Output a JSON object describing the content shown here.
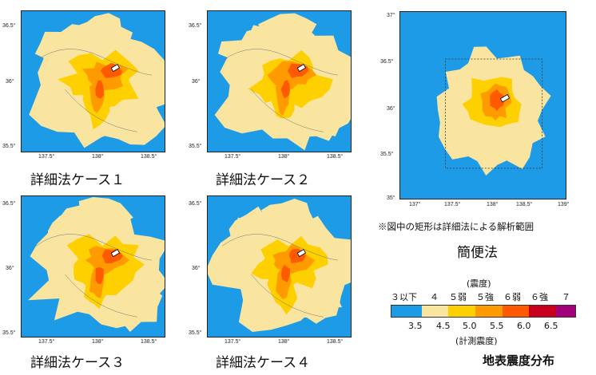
{
  "maps": [
    {
      "label": "詳細法ケース１",
      "yticks": [
        "36.5°",
        "36°",
        "35.5°"
      ],
      "xticks": [
        "137.5°",
        "138°",
        "138.5°"
      ]
    },
    {
      "label": "詳細法ケース２",
      "yticks": [
        "36.5°",
        "36°",
        "35.5°"
      ],
      "xticks": [
        "137.5°",
        "138°",
        "138.5°"
      ]
    },
    {
      "label": "詳細法ケース３",
      "yticks": [
        "36.5°",
        "36°",
        "35.5°"
      ],
      "xticks": [
        "137.5°",
        "138°",
        "138.5°"
      ]
    },
    {
      "label": "詳細法ケース４",
      "yticks": [
        "36.5°",
        "36°",
        "35.5°"
      ],
      "xticks": [
        "137.5°",
        "138°",
        "138.5°"
      ]
    }
  ],
  "simple_map": {
    "label": "簡便法",
    "yticks": [
      "37°",
      "36.5°",
      "36°",
      "35.5°",
      "35°"
    ],
    "xticks": [
      "137°",
      "137.5°",
      "138°",
      "138.5°",
      "139°"
    ]
  },
  "note": "※図中の矩形は詳細法による解析範囲",
  "legend": {
    "intensity_title": "(震度)",
    "intensity_classes": [
      "３以下",
      "４",
      "５弱",
      "５強",
      "６弱",
      "６強",
      "７"
    ],
    "instrumental_values": [
      "3.5",
      "4.5",
      "5.0",
      "5.5",
      "6.0",
      "6.5"
    ],
    "instrumental_title": "(計測震度)",
    "colors": [
      "#1e9be6",
      "#f9e4a0",
      "#ffd000",
      "#ff9a00",
      "#ff5a00",
      "#c8001e",
      "#a0007a"
    ]
  },
  "title": "地表震度分布"
}
